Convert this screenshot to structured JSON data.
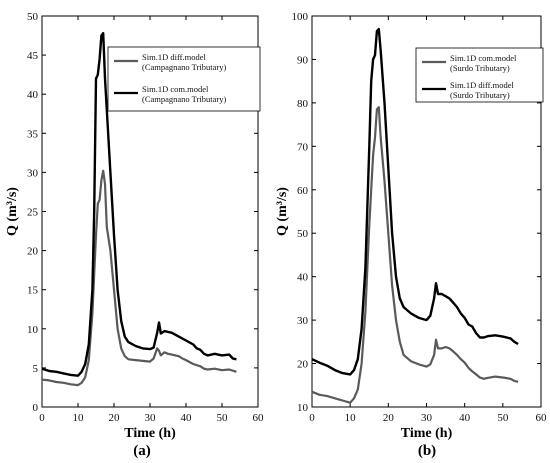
{
  "chart_data": [
    {
      "type": "line",
      "panel_label": "(a)",
      "xlabel": "Time (h)",
      "ylabel": "Q (m³/s)",
      "xlim": [
        0,
        60
      ],
      "ylim": [
        0,
        50
      ],
      "xticks": [
        0,
        10,
        20,
        30,
        40,
        50,
        60
      ],
      "yticks": [
        0,
        5,
        10,
        15,
        20,
        25,
        30,
        35,
        40,
        45,
        50
      ],
      "grid": false,
      "legend": "top-right",
      "series": [
        {
          "name": "Sim.1D diff.model",
          "name_line2": "(Campagnano Tributary)",
          "color": "#5a5a5a",
          "points": [
            [
              0,
              3.5
            ],
            [
              2,
              3.4
            ],
            [
              4,
              3.2
            ],
            [
              6,
              3.1
            ],
            [
              8,
              2.9
            ],
            [
              10,
              2.8
            ],
            [
              11,
              3.1
            ],
            [
              12,
              3.8
            ],
            [
              13,
              6
            ],
            [
              14,
              12
            ],
            [
              15,
              22
            ],
            [
              15.5,
              26
            ],
            [
              16,
              26.5
            ],
            [
              16.5,
              29
            ],
            [
              17,
              30.2
            ],
            [
              17.5,
              28.5
            ],
            [
              18,
              23
            ],
            [
              19,
              20
            ],
            [
              20,
              15
            ],
            [
              21,
              10
            ],
            [
              22,
              7.5
            ],
            [
              23,
              6.5
            ],
            [
              24,
              6.1
            ],
            [
              26,
              6
            ],
            [
              28,
              5.9
            ],
            [
              30,
              5.8
            ],
            [
              31,
              6.2
            ],
            [
              32,
              7.5
            ],
            [
              32.5,
              7.2
            ],
            [
              33,
              6.6
            ],
            [
              34,
              7.0
            ],
            [
              35,
              6.8
            ],
            [
              36,
              6.7
            ],
            [
              38,
              6.5
            ],
            [
              39,
              6.2
            ],
            [
              40,
              6.0
            ],
            [
              42,
              5.5
            ],
            [
              44,
              5.2
            ],
            [
              45,
              4.9
            ],
            [
              46,
              4.8
            ],
            [
              48,
              4.9
            ],
            [
              50,
              4.7
            ],
            [
              52,
              4.8
            ],
            [
              54,
              4.5
            ]
          ]
        },
        {
          "name": "Sim.1D com.model",
          "name_line2": "(Campagnano Tributary)",
          "color": "#000000",
          "points": [
            [
              0,
              4.9
            ],
            [
              2,
              4.6
            ],
            [
              4,
              4.5
            ],
            [
              6,
              4.3
            ],
            [
              8,
              4.1
            ],
            [
              10,
              4.0
            ],
            [
              11,
              4.5
            ],
            [
              12,
              5.5
            ],
            [
              13,
              8
            ],
            [
              14,
              15
            ],
            [
              14.5,
              25
            ],
            [
              15,
              42
            ],
            [
              15.5,
              42.5
            ],
            [
              16,
              44.5
            ],
            [
              16.5,
              47.5
            ],
            [
              17,
              47.8
            ],
            [
              17.5,
              42
            ],
            [
              18,
              38
            ],
            [
              19,
              30
            ],
            [
              20,
              22
            ],
            [
              21,
              15
            ],
            [
              22,
              11
            ],
            [
              23,
              9
            ],
            [
              24,
              8.3
            ],
            [
              26,
              7.8
            ],
            [
              28,
              7.5
            ],
            [
              30,
              7.4
            ],
            [
              31,
              7.6
            ],
            [
              32,
              9.5
            ],
            [
              32.5,
              10.8
            ],
            [
              33,
              9.4
            ],
            [
              34,
              9.7
            ],
            [
              35,
              9.6
            ],
            [
              36,
              9.5
            ],
            [
              38,
              9.0
            ],
            [
              40,
              8.5
            ],
            [
              42,
              8.0
            ],
            [
              43,
              7.5
            ],
            [
              44,
              7.3
            ],
            [
              45,
              6.8
            ],
            [
              46,
              6.6
            ],
            [
              48,
              6.8
            ],
            [
              50,
              6.6
            ],
            [
              52,
              6.7
            ],
            [
              53,
              6.2
            ],
            [
              54,
              6.1
            ]
          ]
        }
      ]
    },
    {
      "type": "line",
      "panel_label": "(b)",
      "xlabel": "Time (h)",
      "ylabel": "Q (m³/s)",
      "xlim": [
        0,
        60
      ],
      "ylim": [
        10,
        100
      ],
      "xticks": [
        0,
        10,
        20,
        30,
        40,
        50,
        60
      ],
      "yticks": [
        10,
        20,
        30,
        40,
        50,
        60,
        70,
        80,
        90,
        100
      ],
      "grid": false,
      "legend": "top-right",
      "series": [
        {
          "name": "Sim.1D com.model",
          "name_line2": "(Surdo Tributary)",
          "color": "#5a5a5a",
          "points": [
            [
              0,
              13.5
            ],
            [
              2,
              12.8
            ],
            [
              4,
              12.5
            ],
            [
              6,
              12
            ],
            [
              8,
              11.5
            ],
            [
              10,
              11.0
            ],
            [
              11,
              12
            ],
            [
              12,
              14
            ],
            [
              13,
              20
            ],
            [
              14,
              32
            ],
            [
              15,
              52
            ],
            [
              15.5,
              60
            ],
            [
              16,
              68
            ],
            [
              16.5,
              72
            ],
            [
              17,
              78.5
            ],
            [
              17.5,
              79
            ],
            [
              18,
              72
            ],
            [
              19,
              62
            ],
            [
              20,
              50
            ],
            [
              21,
              38
            ],
            [
              22,
              30
            ],
            [
              23,
              25
            ],
            [
              24,
              22
            ],
            [
              26,
              20.5
            ],
            [
              28,
              19.8
            ],
            [
              30,
              19.3
            ],
            [
              31,
              19.8
            ],
            [
              32,
              22
            ],
            [
              32.5,
              25.5
            ],
            [
              33,
              23.5
            ],
            [
              34,
              23.5
            ],
            [
              35,
              23.8
            ],
            [
              36,
              23.5
            ],
            [
              37,
              22.8
            ],
            [
              38,
              22
            ],
            [
              39,
              21
            ],
            [
              40,
              20.2
            ],
            [
              41,
              19
            ],
            [
              42,
              18.2
            ],
            [
              43,
              17.5
            ],
            [
              44,
              16.8
            ],
            [
              45,
              16.5
            ],
            [
              46,
              16.7
            ],
            [
              48,
              17
            ],
            [
              50,
              16.8
            ],
            [
              52,
              16.5
            ],
            [
              53,
              16.0
            ],
            [
              54,
              15.8
            ]
          ]
        },
        {
          "name": "Sim.1D diff.model",
          "name_line2": "(Surdo Tributary)",
          "color": "#000000",
          "points": [
            [
              0,
              21
            ],
            [
              2,
              20.2
            ],
            [
              4,
              19.5
            ],
            [
              6,
              18.5
            ],
            [
              8,
              17.8
            ],
            [
              10,
              17.5
            ],
            [
              11,
              18.5
            ],
            [
              12,
              21
            ],
            [
              13,
              28
            ],
            [
              14,
              42
            ],
            [
              15,
              70
            ],
            [
              15.5,
              85
            ],
            [
              16,
              90
            ],
            [
              16.5,
              91
            ],
            [
              17,
              96.5
            ],
            [
              17.5,
              97
            ],
            [
              18,
              92
            ],
            [
              19,
              80
            ],
            [
              20,
              65
            ],
            [
              21,
              50
            ],
            [
              22,
              40
            ],
            [
              23,
              35
            ],
            [
              24,
              33
            ],
            [
              26,
              31.5
            ],
            [
              28,
              30.5
            ],
            [
              30,
              30
            ],
            [
              31,
              31
            ],
            [
              32,
              35
            ],
            [
              32.5,
              38.5
            ],
            [
              33,
              36
            ],
            [
              34,
              36
            ],
            [
              35,
              35.5
            ],
            [
              36,
              35
            ],
            [
              37,
              34
            ],
            [
              38,
              33
            ],
            [
              39,
              31.5
            ],
            [
              40,
              30.5
            ],
            [
              41,
              29
            ],
            [
              42,
              28.5
            ],
            [
              43,
              27
            ],
            [
              44,
              26
            ],
            [
              45,
              26
            ],
            [
              46,
              26.3
            ],
            [
              48,
              26.5
            ],
            [
              50,
              26.2
            ],
            [
              52,
              25.8
            ],
            [
              53,
              25
            ],
            [
              54,
              24.5
            ]
          ]
        }
      ]
    }
  ]
}
